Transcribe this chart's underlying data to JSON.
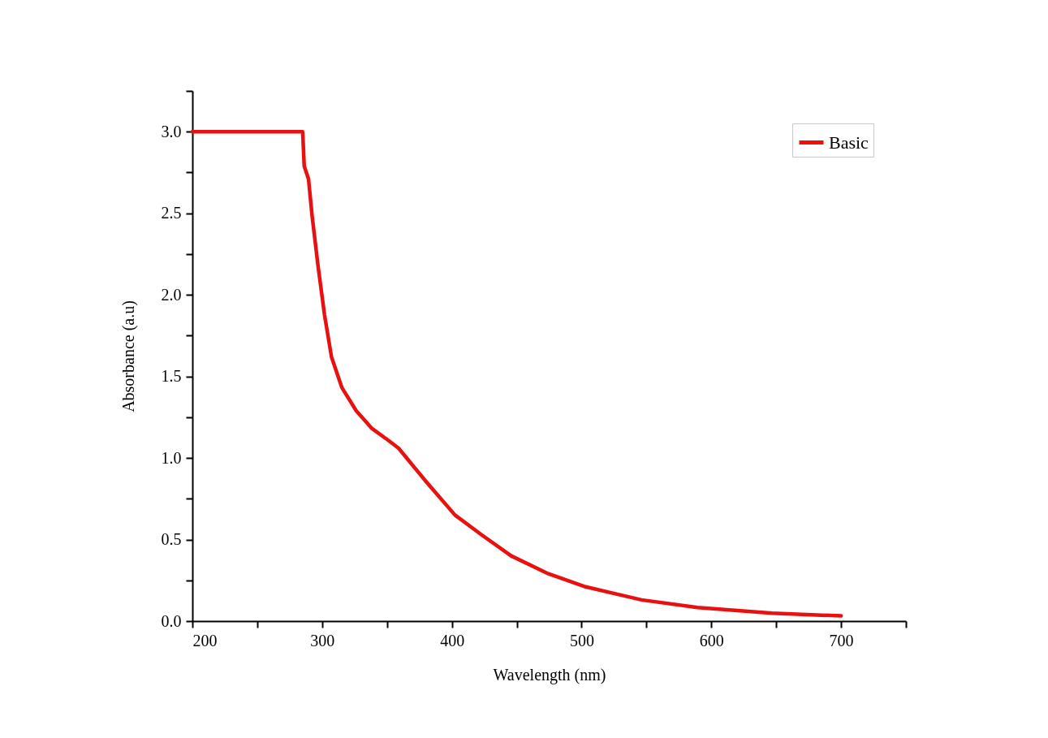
{
  "chart_data": {
    "type": "line",
    "xlabel": "Wavelength (nm)",
    "ylabel": "Absorbance (a.u)",
    "x": [
      200,
      285,
      286.2,
      289.5,
      292.2,
      296.8,
      301.8,
      307.2,
      315.3,
      326.2,
      338.5,
      350.7,
      358.9,
      380.7,
      402.4,
      422.7,
      445.7,
      474.4,
      503.1,
      546.2,
      589.3,
      646.8,
      700
    ],
    "series": [
      {
        "name": "Basic",
        "color": "#e8110f",
        "values": [
          3.0,
          3.0,
          2.79,
          2.71,
          2.49,
          2.18,
          1.88,
          1.62,
          1.43,
          1.29,
          1.18,
          1.11,
          1.06,
          0.85,
          0.65,
          0.53,
          0.4,
          0.29,
          0.21,
          0.13,
          0.083,
          0.048,
          0.032
        ]
      }
    ],
    "xlim": [
      200,
      750
    ],
    "xticks": [
      200,
      {
        "value": 250,
        "label": null
      },
      300,
      {
        "value": 350,
        "label": null
      },
      400,
      {
        "value": 450,
        "label": null
      },
      500,
      {
        "value": 550,
        "label": null
      },
      600,
      {
        "value": 650,
        "label": null
      },
      700,
      {
        "value": 750,
        "label": null
      }
    ],
    "ylim": [
      0,
      3.25
    ],
    "yticks": [
      "0.0",
      {
        "value": 0.25,
        "label": null
      },
      {
        "value": 0.5,
        "label": "0.5"
      },
      {
        "value": 0.75,
        "label": null
      },
      {
        "value": 1,
        "label": "1.0"
      },
      {
        "value": 1.25,
        "label": null
      },
      {
        "value": 1.5,
        "label": "1.5"
      },
      {
        "value": 1.75,
        "label": null
      },
      {
        "value": 2,
        "label": "2.0"
      },
      {
        "value": 2.25,
        "label": null
      },
      {
        "value": 2.5,
        "label": "2.5"
      },
      {
        "value": 2.75,
        "label": null
      },
      {
        "value": 3,
        "label": "3.0"
      },
      {
        "value": 3.25,
        "label": null
      }
    ],
    "grid": false,
    "legend": "top right",
    "line_style": "solid"
  }
}
